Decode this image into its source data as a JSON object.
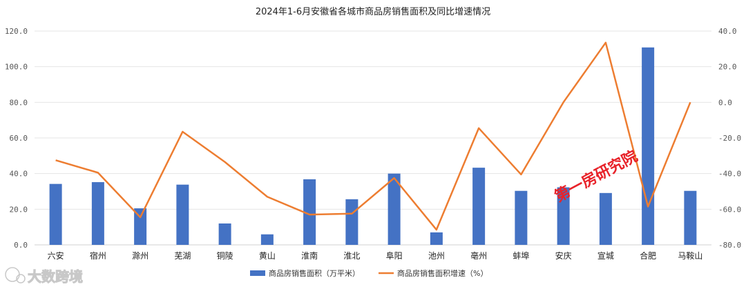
{
  "chart_data": {
    "type": "bar",
    "title": "2024年1-6月安徽省各城市商品房销售面积及同比增速情况",
    "categories": [
      "六安",
      "宿州",
      "滁州",
      "芜湖",
      "铜陵",
      "黄山",
      "淮南",
      "淮北",
      "阜阳",
      "池州",
      "亳州",
      "蚌埠",
      "安庆",
      "宣城",
      "合肥",
      "马鞍山"
    ],
    "series": [
      {
        "name": "商品房销售面积（万平米）",
        "type": "bar",
        "axis": "left",
        "color": "#4472c4",
        "values": [
          34.2,
          35.2,
          20.5,
          33.8,
          12.0,
          5.9,
          36.8,
          25.6,
          40.0,
          7.0,
          43.3,
          30.3,
          32.3,
          29.1,
          110.8,
          30.3
        ]
      },
      {
        "name": "商品房销售面积增速（%）",
        "type": "line",
        "axis": "right",
        "color": "#ed7d31",
        "values": [
          -32.5,
          -39.5,
          -64.5,
          -16.5,
          -33.5,
          -53.0,
          -63.0,
          -62.5,
          -42.5,
          -71.5,
          -14.5,
          -40.5,
          0.0,
          33.5,
          -58.5,
          0.0
        ]
      }
    ],
    "yaxis_left": {
      "min": 0,
      "max": 120,
      "step": 20,
      "ticks": [
        "0.0",
        "20.0",
        "40.0",
        "60.0",
        "80.0",
        "100.0",
        "120.0"
      ]
    },
    "yaxis_right": {
      "min": -80,
      "max": 40,
      "step": 20,
      "ticks": [
        "-80.0",
        "-60.0",
        "-40.0",
        "-20.0",
        "0.0",
        "20.0",
        "40.0"
      ]
    },
    "grid": true,
    "legend_position": "bottom"
  },
  "watermarks": {
    "center_text": "第一房研究院",
    "corner_text": "大数跨境",
    "corner_icon": "logo-icon"
  }
}
